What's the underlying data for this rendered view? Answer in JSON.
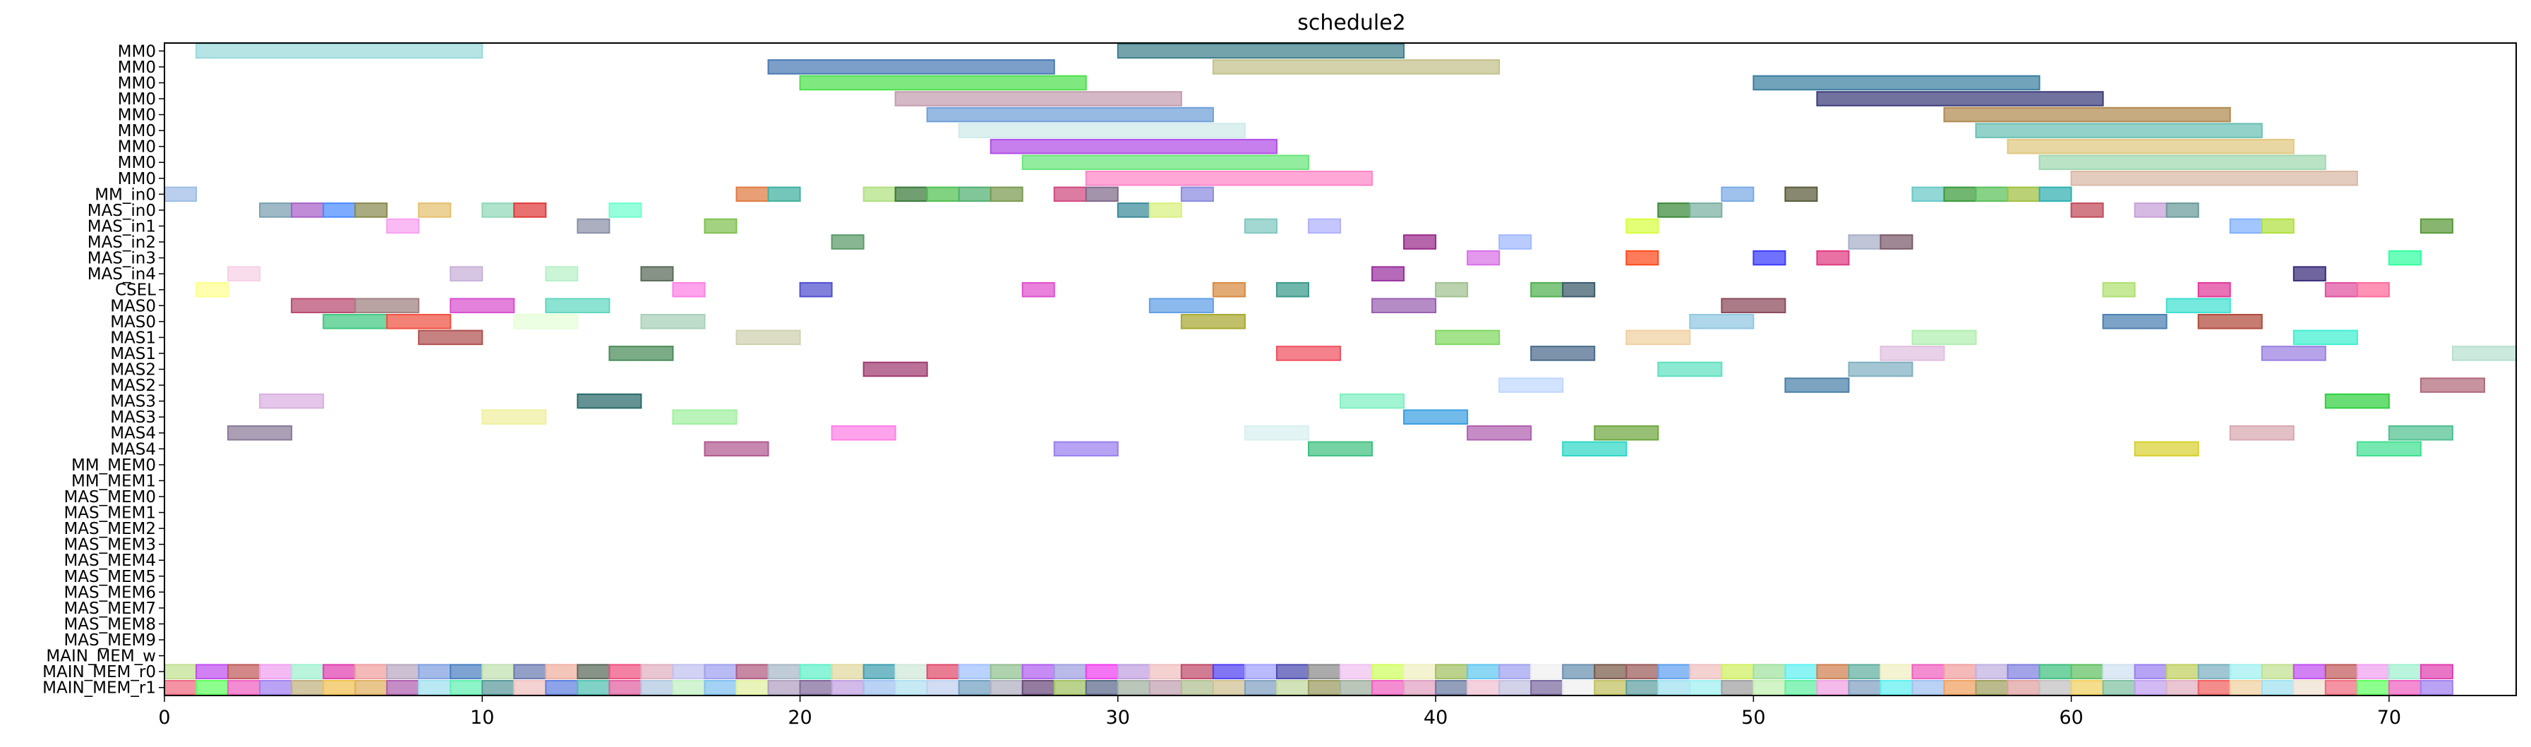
{
  "chart_data": {
    "type": "gantt",
    "title": "schedule2",
    "xlabel": "",
    "ylabel": "",
    "xlim": [
      0,
      74
    ],
    "xticks": [
      0,
      10,
      20,
      30,
      40,
      50,
      60,
      70
    ],
    "rows": [
      "MM0",
      "MM0",
      "MM0",
      "MM0",
      "MM0",
      "MM0",
      "MM0",
      "MM0",
      "MM0",
      "MM_in0",
      "MAS_in0",
      "MAS_in1",
      "MAS_in2",
      "MAS_in3",
      "MAS_in4",
      "CSEL",
      "MAS0",
      "MAS0",
      "MAS1",
      "MAS1",
      "MAS2",
      "MAS2",
      "MAS3",
      "MAS3",
      "MAS4",
      "MAS4",
      "MM_MEM0",
      "MM_MEM1",
      "MAS_MEM0",
      "MAS_MEM1",
      "MAS_MEM2",
      "MAS_MEM3",
      "MAS_MEM4",
      "MAS_MEM5",
      "MAS_MEM6",
      "MAS_MEM7",
      "MAS_MEM8",
      "MAS_MEM9",
      "MAIN_MEM_w",
      "MAIN_MEM_r0",
      "MAIN_MEM_r1"
    ],
    "grid": false,
    "legend": "none",
    "tasks": [
      {
        "row": 0,
        "start": 1,
        "end": 10,
        "color": "#9adada"
      },
      {
        "row": 0,
        "start": 30,
        "end": 39,
        "color": "#3f7f8a"
      },
      {
        "row": 1,
        "start": 19,
        "end": 28,
        "color": "#4a7ab5"
      },
      {
        "row": 1,
        "start": 33,
        "end": 42,
        "color": "#c4c08a"
      },
      {
        "row": 2,
        "start": 20,
        "end": 29,
        "color": "#4de04d"
      },
      {
        "row": 2,
        "start": 50,
        "end": 59,
        "color": "#3a7f9f"
      },
      {
        "row": 3,
        "start": 23,
        "end": 32,
        "color": "#c49cb0"
      },
      {
        "row": 3,
        "start": 52,
        "end": 61,
        "color": "#3c3c7a"
      },
      {
        "row": 4,
        "start": 24,
        "end": 33,
        "color": "#6fa0d8"
      },
      {
        "row": 4,
        "start": 56,
        "end": 65,
        "color": "#b08a50"
      },
      {
        "row": 5,
        "start": 25,
        "end": 34,
        "color": "#d0eaea"
      },
      {
        "row": 5,
        "start": 57,
        "end": 66,
        "color": "#6ac0b4"
      },
      {
        "row": 6,
        "start": 26,
        "end": 35,
        "color": "#b04ee6"
      },
      {
        "row": 6,
        "start": 58,
        "end": 67,
        "color": "#e0c880"
      },
      {
        "row": 7,
        "start": 27,
        "end": 36,
        "color": "#6ae67a"
      },
      {
        "row": 7,
        "start": 59,
        "end": 68,
        "color": "#a0d8b0"
      },
      {
        "row": 8,
        "start": 29,
        "end": 38,
        "color": "#ff86c8"
      },
      {
        "row": 8,
        "start": 60,
        "end": 69,
        "color": "#d8b8a4"
      },
      {
        "row": 9,
        "start": 0,
        "end": 1,
        "color": "#9ebde6"
      },
      {
        "row": 9,
        "start": 18,
        "end": 19,
        "color": "#e07a40"
      },
      {
        "row": 9,
        "start": 19,
        "end": 20,
        "color": "#40b0a0"
      },
      {
        "row": 9,
        "start": 22,
        "end": 23,
        "color": "#b0e080"
      },
      {
        "row": 9,
        "start": 23,
        "end": 24,
        "color": "#3a7a3a"
      },
      {
        "row": 9,
        "start": 24,
        "end": 25,
        "color": "#50c050"
      },
      {
        "row": 9,
        "start": 25,
        "end": 26,
        "color": "#50b070"
      },
      {
        "row": 9,
        "start": 26,
        "end": 27,
        "color": "#7a9a50"
      },
      {
        "row": 9,
        "start": 28,
        "end": 29,
        "color": "#d04a80"
      },
      {
        "row": 9,
        "start": 29,
        "end": 30,
        "color": "#806a8a"
      },
      {
        "row": 9,
        "start": 32,
        "end": 33,
        "color": "#8a8ae0"
      },
      {
        "row": 9,
        "start": 49,
        "end": 50,
        "color": "#7aaae6"
      },
      {
        "row": 9,
        "start": 51,
        "end": 52,
        "color": "#5a5a3a"
      },
      {
        "row": 9,
        "start": 55,
        "end": 56,
        "color": "#6ac8c8"
      },
      {
        "row": 9,
        "start": 56,
        "end": 57,
        "color": "#3a9a3a"
      },
      {
        "row": 9,
        "start": 57,
        "end": 58,
        "color": "#5ac05a"
      },
      {
        "row": 9,
        "start": 58,
        "end": 59,
        "color": "#a0c040"
      },
      {
        "row": 9,
        "start": 59,
        "end": 60,
        "color": "#30b0b0"
      },
      {
        "row": 10,
        "start": 3,
        "end": 4,
        "color": "#7aa0b0"
      },
      {
        "row": 10,
        "start": 4,
        "end": 5,
        "color": "#a860c8"
      },
      {
        "row": 10,
        "start": 5,
        "end": 6,
        "color": "#4a8aff"
      },
      {
        "row": 10,
        "start": 6,
        "end": 7,
        "color": "#8a8a50"
      },
      {
        "row": 10,
        "start": 8,
        "end": 9,
        "color": "#e6c070"
      },
      {
        "row": 10,
        "start": 10,
        "end": 11,
        "color": "#90d8b8"
      },
      {
        "row": 10,
        "start": 11,
        "end": 12,
        "color": "#e03a3a"
      },
      {
        "row": 10,
        "start": 14,
        "end": 15,
        "color": "#70ffd0"
      },
      {
        "row": 10,
        "start": 30,
        "end": 31,
        "color": "#3a8a9a"
      },
      {
        "row": 10,
        "start": 31,
        "end": 32,
        "color": "#d8f080"
      },
      {
        "row": 10,
        "start": 47,
        "end": 48,
        "color": "#3a8a3a"
      },
      {
        "row": 10,
        "start": 48,
        "end": 49,
        "color": "#7ab0a0"
      },
      {
        "row": 10,
        "start": 60,
        "end": 61,
        "color": "#c04a5a"
      },
      {
        "row": 10,
        "start": 62,
        "end": 63,
        "color": "#c8a0d8"
      },
      {
        "row": 10,
        "start": 63,
        "end": 64,
        "color": "#6a9a9a"
      },
      {
        "row": 11,
        "start": 7,
        "end": 8,
        "color": "#f8a0f0"
      },
      {
        "row": 11,
        "start": 13,
        "end": 14,
        "color": "#8a90a8"
      },
      {
        "row": 11,
        "start": 17,
        "end": 18,
        "color": "#80c050"
      },
      {
        "row": 11,
        "start": 34,
        "end": 35,
        "color": "#80c8c0"
      },
      {
        "row": 11,
        "start": 36,
        "end": 37,
        "color": "#b0b0ff"
      },
      {
        "row": 11,
        "start": 46,
        "end": 47,
        "color": "#d8ff40"
      },
      {
        "row": 11,
        "start": 65,
        "end": 66,
        "color": "#80b0ff"
      },
      {
        "row": 11,
        "start": 66,
        "end": 67,
        "color": "#b0e040"
      },
      {
        "row": 11,
        "start": 71,
        "end": 72,
        "color": "#5a9a3a"
      },
      {
        "row": 12,
        "start": 21,
        "end": 22,
        "color": "#5a9a6a"
      },
      {
        "row": 12,
        "start": 39,
        "end": 40,
        "color": "#9a2a8a"
      },
      {
        "row": 12,
        "start": 42,
        "end": 43,
        "color": "#a0b8ff"
      },
      {
        "row": 12,
        "start": 53,
        "end": 54,
        "color": "#a8b0c8"
      },
      {
        "row": 12,
        "start": 54,
        "end": 55,
        "color": "#7a5a6a"
      },
      {
        "row": 13,
        "start": 41,
        "end": 42,
        "color": "#d870e8"
      },
      {
        "row": 13,
        "start": 46,
        "end": 47,
        "color": "#ff4a1a"
      },
      {
        "row": 13,
        "start": 50,
        "end": 51,
        "color": "#3a3aff"
      },
      {
        "row": 13,
        "start": 52,
        "end": 53,
        "color": "#e03a80"
      },
      {
        "row": 13,
        "start": 70,
        "end": 71,
        "color": "#30ffa0"
      },
      {
        "row": 14,
        "start": 2,
        "end": 3,
        "color": "#f8d0e6"
      },
      {
        "row": 14,
        "start": 9,
        "end": 10,
        "color": "#c8b0d8"
      },
      {
        "row": 14,
        "start": 12,
        "end": 13,
        "color": "#b8f0c8"
      },
      {
        "row": 14,
        "start": 15,
        "end": 16,
        "color": "#5a6a5a"
      },
      {
        "row": 14,
        "start": 38,
        "end": 39,
        "color": "#9a30a0"
      },
      {
        "row": 14,
        "start": 67,
        "end": 68,
        "color": "#3a2a7a"
      },
      {
        "row": 15,
        "start": 1,
        "end": 2,
        "color": "#ffff90"
      },
      {
        "row": 15,
        "start": 16,
        "end": 17,
        "color": "#ff80e6"
      },
      {
        "row": 15,
        "start": 20,
        "end": 21,
        "color": "#5050d0"
      },
      {
        "row": 15,
        "start": 27,
        "end": 28,
        "color": "#e050d0"
      },
      {
        "row": 15,
        "start": 33,
        "end": 34,
        "color": "#d88a40"
      },
      {
        "row": 15,
        "start": 35,
        "end": 36,
        "color": "#3a9a8a"
      },
      {
        "row": 15,
        "start": 40,
        "end": 41,
        "color": "#a0c090"
      },
      {
        "row": 15,
        "start": 43,
        "end": 44,
        "color": "#50b050"
      },
      {
        "row": 15,
        "start": 44,
        "end": 45,
        "color": "#3a5a6a"
      },
      {
        "row": 15,
        "start": 61,
        "end": 62,
        "color": "#b0e070"
      },
      {
        "row": 15,
        "start": 64,
        "end": 65,
        "color": "#e03a9a"
      },
      {
        "row": 15,
        "start": 68,
        "end": 69,
        "color": "#e050a0"
      },
      {
        "row": 15,
        "start": 69,
        "end": 70,
        "color": "#ff6a9a"
      },
      {
        "row": 16,
        "start": 4,
        "end": 6,
        "color": "#b84a70"
      },
      {
        "row": 16,
        "start": 6,
        "end": 8,
        "color": "#a08080"
      },
      {
        "row": 16,
        "start": 9,
        "end": 11,
        "color": "#d850d0"
      },
      {
        "row": 16,
        "start": 12,
        "end": 14,
        "color": "#60d8c0"
      },
      {
        "row": 16,
        "start": 31,
        "end": 33,
        "color": "#60a0e6"
      },
      {
        "row": 16,
        "start": 38,
        "end": 40,
        "color": "#9a60b0"
      },
      {
        "row": 16,
        "start": 49,
        "end": 51,
        "color": "#8a4a5a"
      },
      {
        "row": 16,
        "start": 63,
        "end": 65,
        "color": "#40e0d0"
      },
      {
        "row": 17,
        "start": 5,
        "end": 7,
        "color": "#40c880"
      },
      {
        "row": 17,
        "start": 7,
        "end": 9,
        "color": "#f05040"
      },
      {
        "row": 17,
        "start": 11,
        "end": 13,
        "color": "#e6ffd8"
      },
      {
        "row": 17,
        "start": 15,
        "end": 17,
        "color": "#a8d0b8"
      },
      {
        "row": 17,
        "start": 32,
        "end": 34,
        "color": "#a8a830"
      },
      {
        "row": 17,
        "start": 48,
        "end": 50,
        "color": "#90c8e0"
      },
      {
        "row": 17,
        "start": 61,
        "end": 63,
        "color": "#4a80b0"
      },
      {
        "row": 17,
        "start": 64,
        "end": 66,
        "color": "#b04a3a"
      },
      {
        "row": 18,
        "start": 8,
        "end": 10,
        "color": "#b05050"
      },
      {
        "row": 18,
        "start": 18,
        "end": 20,
        "color": "#d0d0b0"
      },
      {
        "row": 18,
        "start": 40,
        "end": 42,
        "color": "#80d860"
      },
      {
        "row": 18,
        "start": 46,
        "end": 48,
        "color": "#f0d0a0"
      },
      {
        "row": 18,
        "start": 55,
        "end": 57,
        "color": "#b0f0b0"
      },
      {
        "row": 18,
        "start": 67,
        "end": 69,
        "color": "#40f0d0"
      },
      {
        "row": 19,
        "start": 14,
        "end": 16,
        "color": "#4a8a5a"
      },
      {
        "row": 19,
        "start": 35,
        "end": 37,
        "color": "#f05060"
      },
      {
        "row": 19,
        "start": 43,
        "end": 45,
        "color": "#4a6a8a"
      },
      {
        "row": 19,
        "start": 54,
        "end": 56,
        "color": "#e0c0e0"
      },
      {
        "row": 19,
        "start": 66,
        "end": 68,
        "color": "#9a80e0"
      },
      {
        "row": 19,
        "start": 72,
        "end": 74,
        "color": "#b8e0d0"
      },
      {
        "row": 20,
        "start": 22,
        "end": 24,
        "color": "#a03a70"
      },
      {
        "row": 20,
        "start": 47,
        "end": 49,
        "color": "#60e0c0"
      },
      {
        "row": 20,
        "start": 53,
        "end": 55,
        "color": "#80b0c0"
      },
      {
        "row": 21,
        "start": 42,
        "end": 44,
        "color": "#c0d8ff"
      },
      {
        "row": 21,
        "start": 51,
        "end": 53,
        "color": "#4a80a8"
      },
      {
        "row": 21,
        "start": 71,
        "end": 73,
        "color": "#b06a7a"
      },
      {
        "row": 22,
        "start": 3,
        "end": 5,
        "color": "#d8b0e0"
      },
      {
        "row": 22,
        "start": 13,
        "end": 15,
        "color": "#2a6a6a"
      },
      {
        "row": 22,
        "start": 37,
        "end": 39,
        "color": "#80f0c0"
      },
      {
        "row": 22,
        "start": 68,
        "end": 70,
        "color": "#30d040"
      },
      {
        "row": 23,
        "start": 10,
        "end": 12,
        "color": "#f0f0a0"
      },
      {
        "row": 23,
        "start": 16,
        "end": 18,
        "color": "#a0f0a0"
      },
      {
        "row": 23,
        "start": 39,
        "end": 41,
        "color": "#3aa0e0"
      },
      {
        "row": 24,
        "start": 2,
        "end": 4,
        "color": "#8a7a9a"
      },
      {
        "row": 24,
        "start": 21,
        "end": 23,
        "color": "#ff80e6"
      },
      {
        "row": 24,
        "start": 34,
        "end": 36,
        "color": "#d8f0f0"
      },
      {
        "row": 24,
        "start": 41,
        "end": 43,
        "color": "#b060b0"
      },
      {
        "row": 24,
        "start": 45,
        "end": 47,
        "color": "#70a840"
      },
      {
        "row": 24,
        "start": 65,
        "end": 67,
        "color": "#d8a8b0"
      },
      {
        "row": 24,
        "start": 70,
        "end": 72,
        "color": "#50c090"
      },
      {
        "row": 25,
        "start": 17,
        "end": 19,
        "color": "#b05a90"
      },
      {
        "row": 25,
        "start": 28,
        "end": 30,
        "color": "#9a80f0"
      },
      {
        "row": 25,
        "start": 36,
        "end": 38,
        "color": "#40c080"
      },
      {
        "row": 25,
        "start": 44,
        "end": 46,
        "color": "#30d8c8"
      },
      {
        "row": 25,
        "start": 62,
        "end": 64,
        "color": "#d8d030"
      },
      {
        "row": 25,
        "start": 69,
        "end": 71,
        "color": "#40e090"
      }
    ],
    "strip_rows": [
      {
        "row": 39,
        "start": 0,
        "end": 72,
        "palette": [
          "#c0e090",
          "#c050f0",
          "#c05a5a",
          "#f0a0f0",
          "#a0f0d0",
          "#e040b0",
          "#f0a0a0",
          "#b8a8c0",
          "#80a0e0",
          "#4a80c0",
          "#c0e0b0",
          "#6a7ab0",
          "#f0b0a0",
          "#5a6a5a",
          "#f05080",
          "#e0b0c0",
          "#c0c0f0",
          "#a0a0f0",
          "#b05a80",
          "#a8b8c8",
          "#60f0c8",
          "#e0d8a0",
          "#40a0b0",
          "#d0e8d8",
          "#e04a6a",
          "#a0c0ff",
          "#90c090",
          "#b060f0",
          "#a0a0e0",
          "#f040f0",
          "#c0a0e0",
          "#f0c0c0",
          "#c04a6a",
          "#5040f0",
          "#a0a0ff",
          "#4a4ab0",
          "#8a8a8a",
          "#f0c0f0",
          "#d0ff60",
          "#f0f0c0",
          "#a0c060",
          "#60c8f0",
          "#a0a0f0",
          "#f0f0f0",
          "#6a90b0",
          "#7a5a4a",
          "#9a5a5a",
          "#60a0f0",
          "#f0c0c0",
          "#d0f060",
          "#a0e0a0",
          "#60f0f0",
          "#d08050",
          "#60b0a0",
          "#f0f0c0",
          "#f060c0",
          "#f0a0a0",
          "#c0b0e0",
          "#8080e0",
          "#40c080",
          "#60c060",
          "#d0e0f0",
          "#9a80f0",
          "#c0d060",
          "#7ab0c0",
          "#a0f0f0"
        ]
      },
      {
        "row": 40,
        "start": 0,
        "end": 72,
        "palette": [
          "#f06a80",
          "#60ff60",
          "#f060c0",
          "#a080f0",
          "#c0b080",
          "#f0c050",
          "#e0b060",
          "#b060b0",
          "#a0e0f0",
          "#60f0b0",
          "#5a9a9a",
          "#f0c0c0",
          "#6080e0",
          "#50c0b0",
          "#e060a0",
          "#b0c8e0",
          "#c0f0c0",
          "#80c0f0",
          "#e0f0a0",
          "#b0a0c0",
          "#806a9a",
          "#c0a0e0",
          "#a0c0f0",
          "#b0e0f0",
          "#c0d0f0",
          "#70a0c0",
          "#b0b0c0",
          "#6a4a7a",
          "#a0c060",
          "#5a6a8a",
          "#a0b0a0",
          "#c0a0b0",
          "#b0c090",
          "#d0c090",
          "#80a0c0",
          "#c0d8a0",
          "#9a9a60",
          "#a0b0a0",
          "#f060c0",
          "#e0a0c0",
          "#6a7aa0",
          "#f0c0d0",
          "#c0c0e0",
          "#7a6aa0",
          "#f0f0f0",
          "#c0c060",
          "#60a0a0",
          "#a0e0f0",
          "#a0f0f0",
          "#a0a0a0",
          "#c0f0b0",
          "#60f0a0",
          "#f0a0e0",
          "#80a0c0",
          "#60f0f0",
          "#a0c0f0",
          "#f0a060",
          "#a0a060",
          "#e0a0a0",
          "#c0c0c0",
          "#f0d060",
          "#80c0a0",
          "#c0a0f0",
          "#e0b0c0",
          "#f06060",
          "#f0d0a0",
          "#a0e0f0",
          "#f0e0d0"
        ]
      }
    ]
  }
}
